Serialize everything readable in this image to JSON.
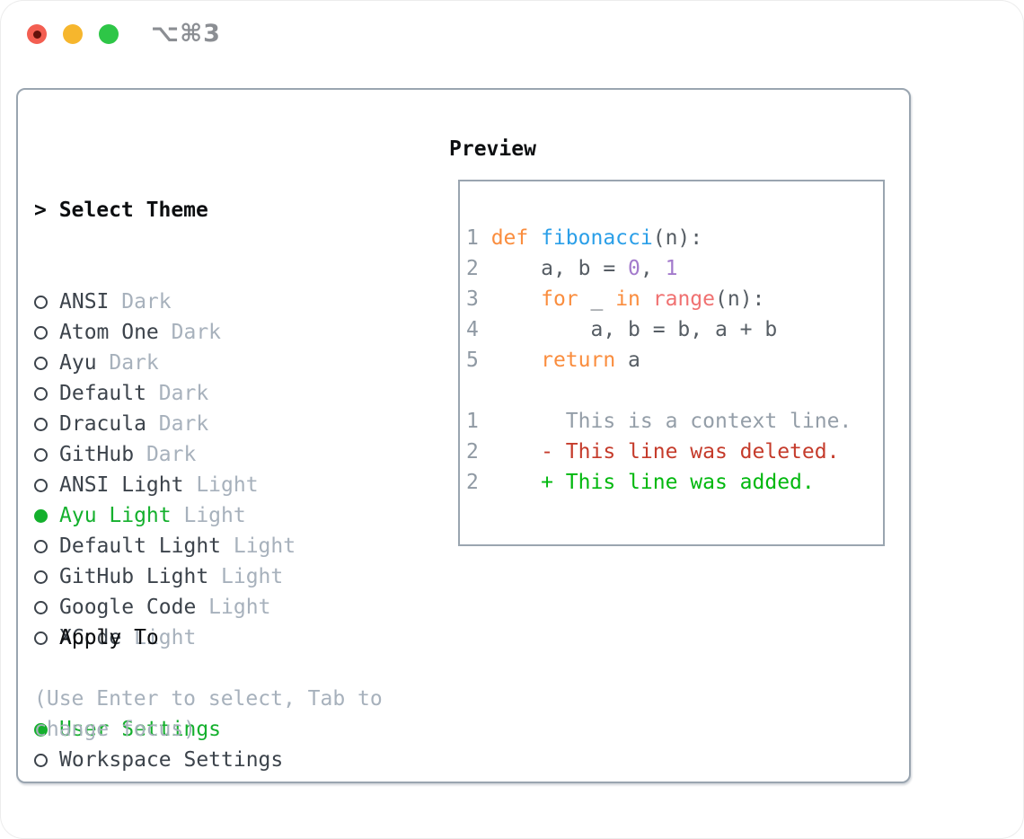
{
  "window": {
    "shortcut": "⌥⌘3"
  },
  "theme_list": {
    "title": "> Select Theme",
    "items": [
      {
        "name": "ANSI",
        "variant": "Dark",
        "selected": false
      },
      {
        "name": "Atom One",
        "variant": "Dark",
        "selected": false
      },
      {
        "name": "Ayu",
        "variant": "Dark",
        "selected": false
      },
      {
        "name": "Default",
        "variant": "Dark",
        "selected": false
      },
      {
        "name": "Dracula",
        "variant": "Dark",
        "selected": false
      },
      {
        "name": "GitHub",
        "variant": "Dark",
        "selected": false
      },
      {
        "name": "ANSI Light",
        "variant": "Light",
        "selected": false
      },
      {
        "name": "Ayu Light",
        "variant": "Light",
        "selected": true
      },
      {
        "name": "Default Light",
        "variant": "Light",
        "selected": false
      },
      {
        "name": "GitHub Light",
        "variant": "Light",
        "selected": false
      },
      {
        "name": "Google Code",
        "variant": "Light",
        "selected": false
      },
      {
        "name": "XCode",
        "variant": "Light",
        "selected": false
      }
    ]
  },
  "apply_to": {
    "title": "Apply To",
    "options": [
      {
        "label": "User Settings",
        "selected": true
      },
      {
        "label": "Workspace Settings",
        "selected": false
      }
    ]
  },
  "help": {
    "text": "(Use Enter to select, Tab to change focus)"
  },
  "preview": {
    "title": "Preview",
    "lines": [
      [
        [
          "num",
          "1 "
        ],
        [
          "kw",
          "def "
        ],
        [
          "fn",
          "fibonacci"
        ],
        [
          "code",
          "(n):"
        ]
      ],
      [
        [
          "num",
          "2 "
        ],
        [
          "code",
          "    a, b = "
        ],
        [
          "lit",
          "0"
        ],
        [
          "code",
          ", "
        ],
        [
          "lit",
          "1"
        ]
      ],
      [
        [
          "num",
          "3 "
        ],
        [
          "code",
          "    "
        ],
        [
          "kw",
          "for"
        ],
        [
          "code",
          " _ "
        ],
        [
          "kw",
          "in"
        ],
        [
          "code",
          " "
        ],
        [
          "call",
          "range"
        ],
        [
          "code",
          "(n):"
        ]
      ],
      [
        [
          "num",
          "4 "
        ],
        [
          "code",
          "        a, b = b, a + b"
        ]
      ],
      [
        [
          "num",
          "5 "
        ],
        [
          "code",
          "    "
        ],
        [
          "kw",
          "return"
        ],
        [
          "code",
          " a"
        ]
      ],
      [],
      [
        [
          "num",
          "1 "
        ],
        [
          "ctx",
          "      This is a context line."
        ]
      ],
      [
        [
          "num",
          "2 "
        ],
        [
          "del",
          "    - This line was deleted."
        ]
      ],
      [
        [
          "num",
          "2 "
        ],
        [
          "add",
          "    + This line was added."
        ]
      ]
    ]
  },
  "colors": {
    "red_light": "#f35e51",
    "red_light_dot": "#64120b",
    "yellow_light": "#f6b62d",
    "green_light": "#2ec647",
    "shortcut_gray": "#8b8e93",
    "border": "#9aa5b0",
    "ink": "#3c434b",
    "muted": "#a7b1bc",
    "green": "#14b02d",
    "num": "#8f99a3",
    "code": "#565d64",
    "kw": "#fa8d3e",
    "fn": "#2b9fe8",
    "lit": "#a37acc",
    "call": "#f07171",
    "ctx": "#949ea8",
    "del": "#c53b2b",
    "add": "#00b80e"
  }
}
